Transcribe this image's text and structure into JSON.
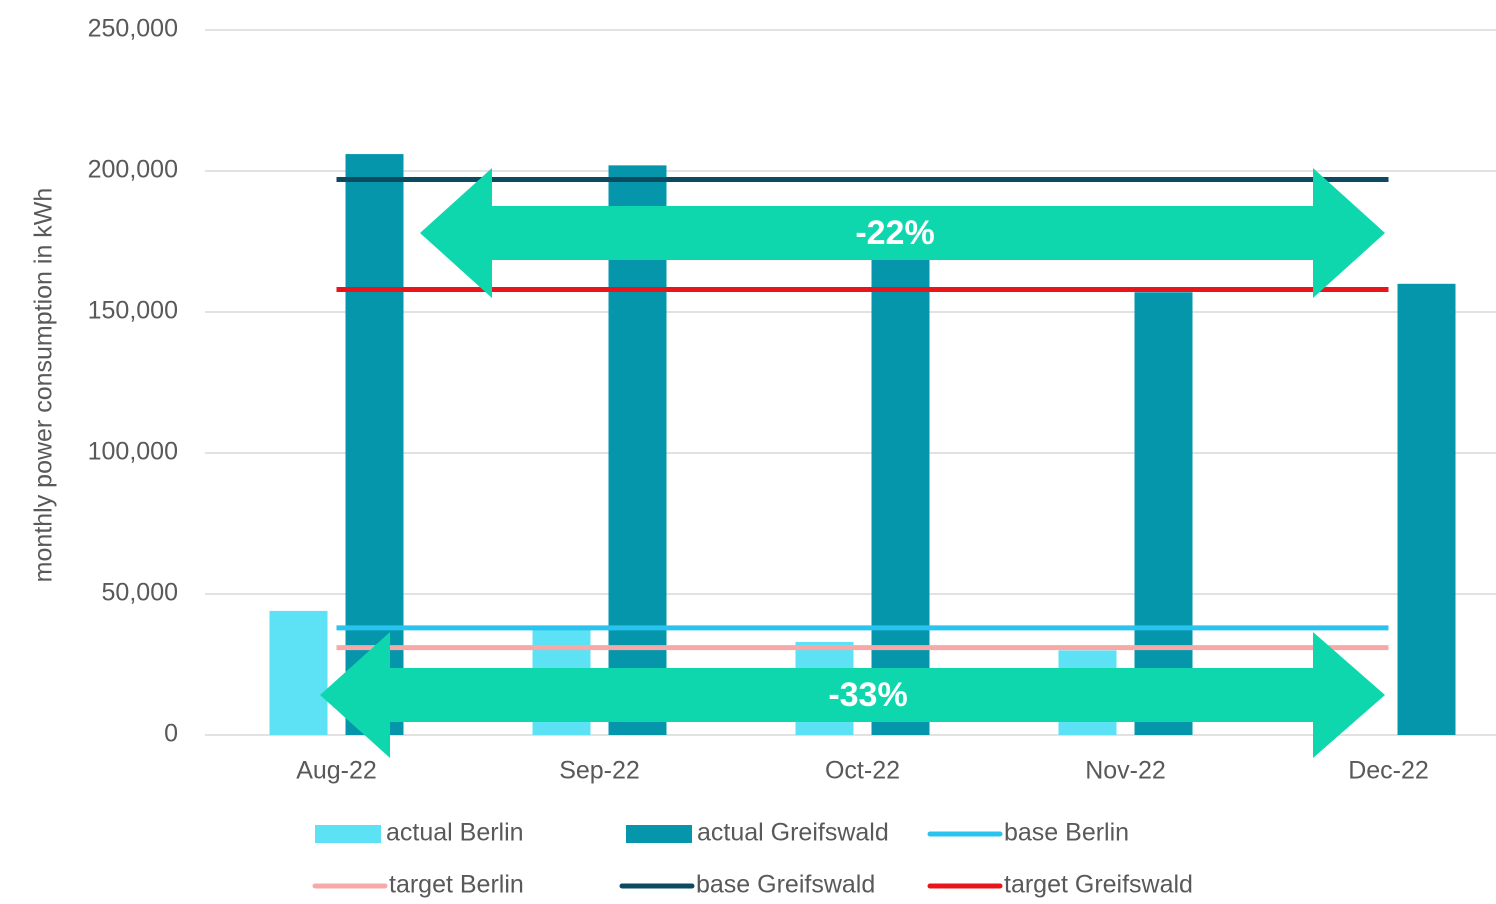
{
  "chart_data": {
    "type": "bar",
    "y_label": "monthly power consumption in kWh",
    "categories": [
      "Aug-22",
      "Sep-22",
      "Oct-22",
      "Nov-22",
      "Dec-22"
    ],
    "series": [
      {
        "name": "actual Berlin",
        "kind": "bar",
        "color": "#5ce1f5",
        "values": [
          44000,
          38000,
          33000,
          30000,
          null
        ]
      },
      {
        "name": "actual Greifswald",
        "kind": "bar",
        "color": "#0596ab",
        "values": [
          206000,
          202000,
          170000,
          157000,
          160000
        ]
      },
      {
        "name": "base Berlin",
        "kind": "line",
        "color": "#29c3f0",
        "values": [
          38000,
          38000,
          38000,
          38000,
          38000
        ]
      },
      {
        "name": "target Berlin",
        "kind": "line",
        "color": "#f7a9a8",
        "values": [
          31000,
          31000,
          31000,
          31000,
          31000
        ]
      },
      {
        "name": "base Greifswald",
        "kind": "line",
        "color": "#0c4a60",
        "values": [
          197000,
          197000,
          197000,
          197000,
          197000
        ]
      },
      {
        "name": "target Greifswald",
        "kind": "line",
        "color": "#e8151b",
        "values": [
          158000,
          158000,
          158000,
          158000,
          158000
        ]
      }
    ],
    "annotations": [
      "-22%",
      "-33%"
    ],
    "ylim": [
      0,
      250000
    ],
    "yticks": [
      0,
      {
        "value": 50000,
        "label": "50,000"
      },
      {
        "value": 100000,
        "label": "100,000"
      },
      {
        "value": 150000,
        "label": "150,000"
      },
      {
        "value": 200000,
        "label": "200,000"
      },
      {
        "value": 250000,
        "label": "250,000"
      }
    ],
    "grid": true,
    "legend": "bottom"
  }
}
